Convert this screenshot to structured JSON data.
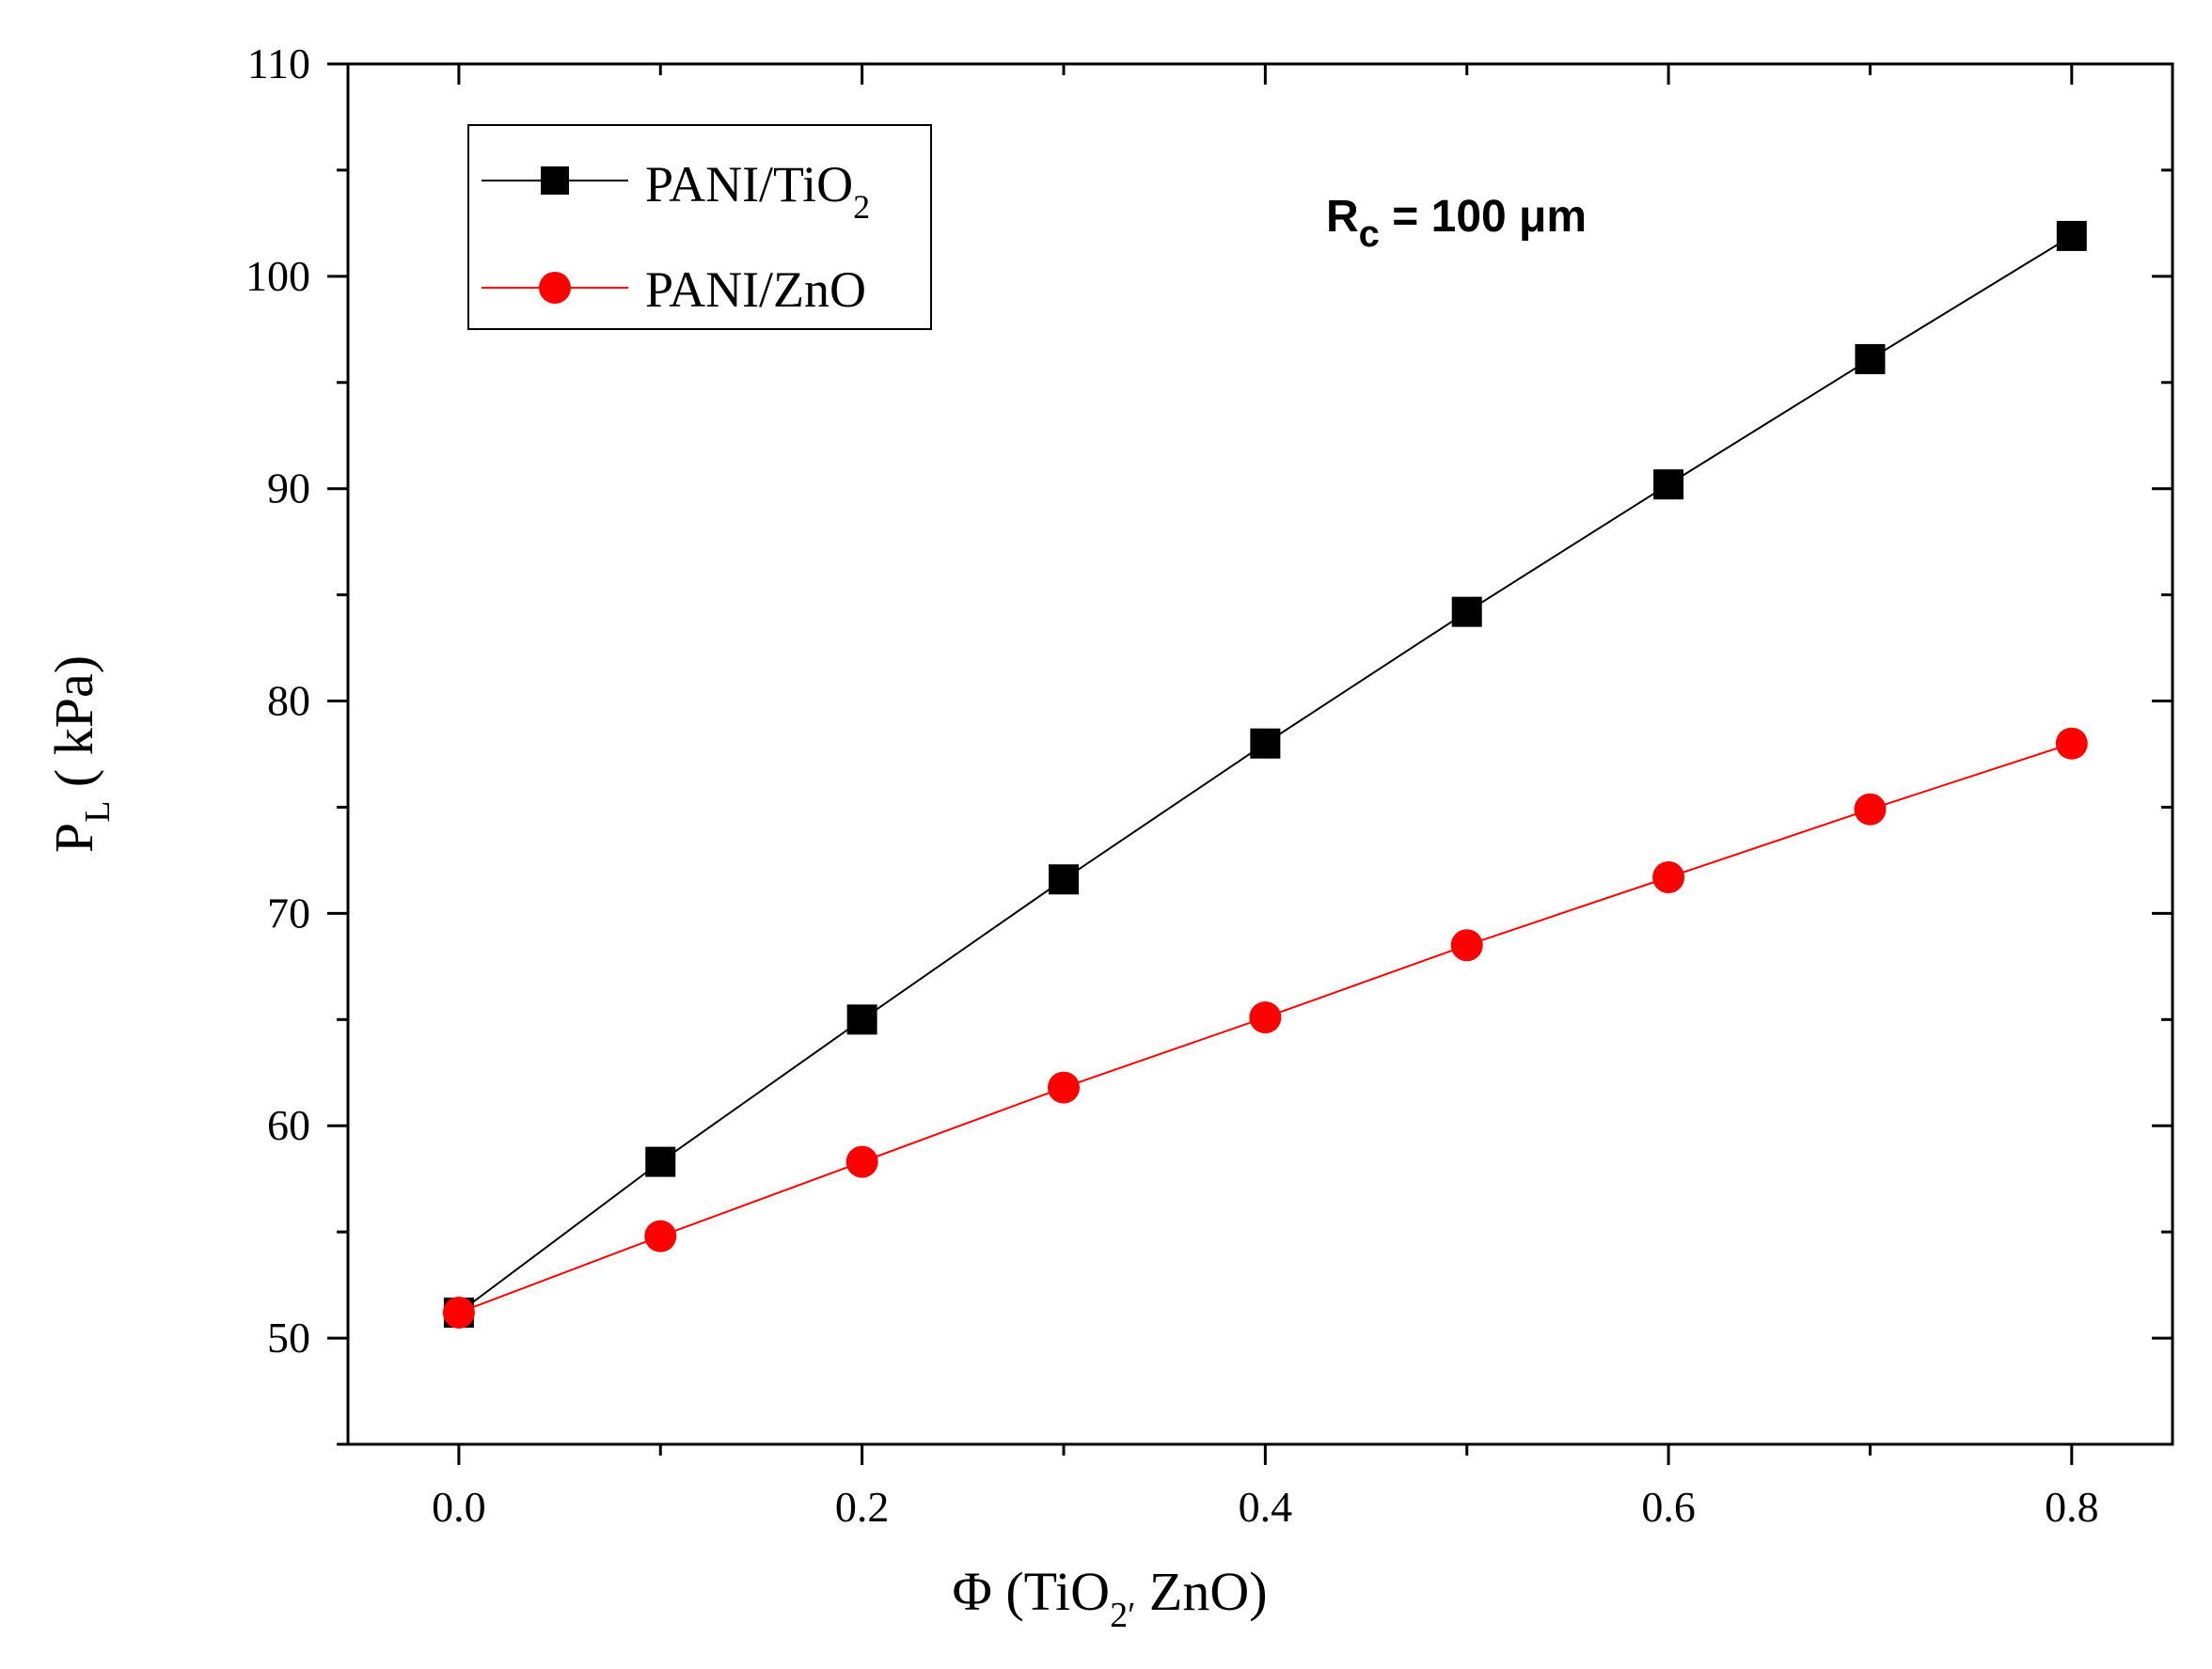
{
  "chart_data": {
    "type": "line",
    "x": [
      0.0,
      0.1,
      0.2,
      0.3,
      0.4,
      0.5,
      0.6,
      0.7,
      0.8
    ],
    "series": [
      {
        "name": "PANI/TiO2",
        "legend_main": "PANI/TiO",
        "legend_sub": "2",
        "color": "#000000",
        "marker": "square",
        "values": [
          51.2,
          58.3,
          65.0,
          71.6,
          78.0,
          84.2,
          90.2,
          96.1,
          101.9
        ]
      },
      {
        "name": "PANI/ZnO",
        "legend_main": "PANI/ZnO",
        "legend_sub": "",
        "color": "#ff0000",
        "marker": "circle",
        "values": [
          51.2,
          54.8,
          58.3,
          61.8,
          65.1,
          68.5,
          71.7,
          74.9,
          78.0
        ]
      }
    ],
    "xlim": [
      -0.055,
      0.85
    ],
    "ylim": [
      45,
      110
    ],
    "x_ticks": [
      0.0,
      0.2,
      0.4,
      0.6,
      0.8
    ],
    "x_tick_labels": [
      "0.0",
      "0.2",
      "0.4",
      "0.6",
      "0.8"
    ],
    "x_minor_ticks": [
      0.1,
      0.3,
      0.5,
      0.7
    ],
    "y_ticks": [
      50,
      60,
      70,
      80,
      90,
      100,
      110
    ],
    "y_tick_labels": [
      "50",
      "60",
      "70",
      "80",
      "90",
      "100",
      "110"
    ],
    "y_minor_ticks": [
      45,
      55,
      65,
      75,
      85,
      95,
      105
    ],
    "xlabel": {
      "main": "Φ (TiO",
      "sub": "2",
      "prime": "′",
      "rest": " ZnO)"
    },
    "ylabel": {
      "main": "P",
      "sub": "L",
      "rest": " ( kPa)"
    },
    "annotation": {
      "main": "R",
      "sub": "c",
      "rest": " = 100 μm"
    },
    "legend_position": "top-left",
    "grid": false
  }
}
